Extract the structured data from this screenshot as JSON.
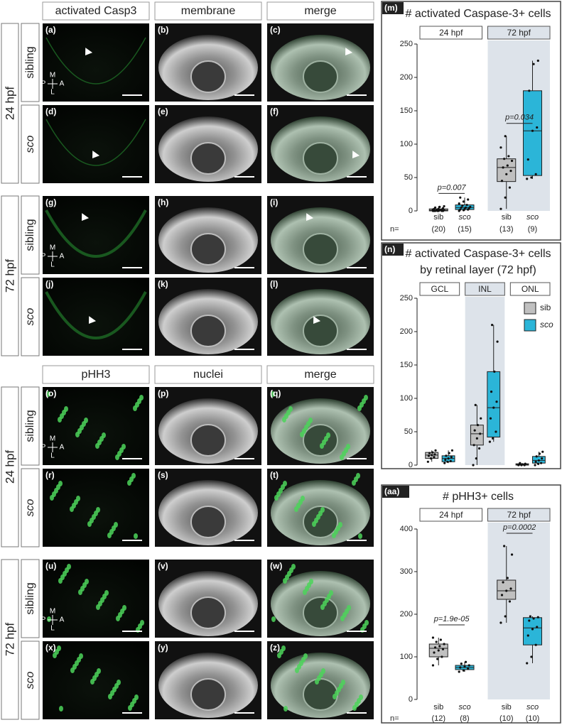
{
  "figure": {
    "compass": {
      "top": "M",
      "left": "P",
      "right": "A",
      "bottom": "L"
    },
    "sections": [
      {
        "headers": [
          "activated Casp3",
          "membrane",
          "merge"
        ],
        "stages": [
          {
            "name": "24 hpf",
            "rows": [
              {
                "label": "sibling",
                "panels": [
                  "(a)",
                  "(b)",
                  "(c)"
                ]
              },
              {
                "label": "sco",
                "panels": [
                  "(d)",
                  "(e)",
                  "(f)"
                ]
              }
            ]
          },
          {
            "name": "72 hpf",
            "rows": [
              {
                "label": "sibling",
                "panels": [
                  "(g)",
                  "(h)",
                  "(i)"
                ]
              },
              {
                "label": "sco",
                "panels": [
                  "(j)",
                  "(k)",
                  "(l)"
                ]
              }
            ]
          }
        ]
      },
      {
        "headers": [
          "pHH3",
          "nuclei",
          "merge"
        ],
        "stages": [
          {
            "name": "24 hpf",
            "rows": [
              {
                "label": "sibling",
                "panels": [
                  "(o)",
                  "(p)",
                  "(q)"
                ]
              },
              {
                "label": "sco",
                "panels": [
                  "(r)",
                  "(s)",
                  "(t)"
                ]
              }
            ]
          },
          {
            "name": "72 hpf",
            "rows": [
              {
                "label": "sibling",
                "panels": [
                  "(u)",
                  "(v)",
                  "(w)"
                ]
              },
              {
                "label": "sco",
                "panels": [
                  "(x)",
                  "(y)",
                  "(z)"
                ]
              }
            ]
          }
        ]
      }
    ]
  },
  "chart_data": [
    {
      "type": "box",
      "panel": "(m)",
      "title": "# activated Caspase-3+ cells",
      "ylim": [
        0,
        250
      ],
      "yticks": [
        0,
        50,
        100,
        150,
        200,
        250
      ],
      "colors": [
        "#c0c0c0",
        "#2bb5d8"
      ],
      "n_label": "n=",
      "groups": [
        {
          "name": "24 hpf",
          "shaded": false,
          "categories": [
            "sib",
            "sco"
          ],
          "n": [
            "(20)",
            "(15)"
          ],
          "p_value": "p=0.007",
          "boxes": [
            {
              "min": 0,
              "q1": 0,
              "median": 1,
              "q3": 3,
              "max": 7,
              "points": [
                0,
                0,
                0,
                0,
                0,
                0,
                0,
                1,
                1,
                1,
                1,
                2,
                2,
                2,
                3,
                3,
                4,
                5,
                6,
                7
              ]
            },
            {
              "min": 0,
              "q1": 2,
              "median": 5,
              "q3": 9,
              "max": 20,
              "points": [
                0,
                1,
                2,
                2,
                3,
                4,
                5,
                5,
                6,
                8,
                9,
                11,
                14,
                17,
                20
              ]
            }
          ]
        },
        {
          "name": "72 hpf",
          "shaded": true,
          "categories": [
            "sib",
            "sco"
          ],
          "n": [
            "(13)",
            "(9)"
          ],
          "p_value": "p=0.034",
          "boxes": [
            {
              "min": 3,
              "q1": 44,
              "median": 65,
              "q3": 78,
              "max": 112,
              "points": [
                3,
                20,
                35,
                45,
                55,
                60,
                65,
                68,
                75,
                78,
                82,
                95,
                112
              ]
            },
            {
              "min": 48,
              "q1": 53,
              "median": 120,
              "q3": 180,
              "max": 225,
              "points": [
                48,
                50,
                55,
                77,
                120,
                125,
                180,
                220,
                225
              ]
            }
          ]
        }
      ]
    },
    {
      "type": "box",
      "panel": "(n)",
      "title": "# activated Caspase-3+ cells",
      "subtitle": "by retinal layer (72 hpf)",
      "ylim": [
        0,
        250
      ],
      "yticks": [
        0,
        50,
        100,
        150,
        200,
        250
      ],
      "series": [
        {
          "name": "sib",
          "color": "#c0c0c0"
        },
        {
          "name": "sco",
          "color": "#2bb5d8"
        }
      ],
      "legend": "top-right",
      "groups": [
        {
          "name": "GCL",
          "shaded": false,
          "boxes": [
            {
              "min": 5,
              "q1": 10,
              "median": 15,
              "q3": 19,
              "max": 22,
              "points": [
                5,
                10,
                12,
                14,
                15,
                16,
                18,
                19,
                22
              ]
            },
            {
              "min": 3,
              "q1": 5,
              "median": 10,
              "q3": 14,
              "max": 22,
              "points": [
                3,
                5,
                6,
                8,
                10,
                12,
                14,
                18,
                22
              ]
            }
          ]
        },
        {
          "name": "INL",
          "shaded": true,
          "boxes": [
            {
              "min": 0,
              "q1": 30,
              "median": 47,
              "q3": 60,
              "max": 90,
              "points": [
                0,
                10,
                25,
                30,
                40,
                47,
                52,
                60,
                70,
                90
              ]
            },
            {
              "min": 35,
              "q1": 42,
              "median": 86,
              "q3": 140,
              "max": 210,
              "points": [
                35,
                40,
                50,
                70,
                86,
                95,
                110,
                140,
                185,
                210
              ]
            }
          ]
        },
        {
          "name": "ONL",
          "shaded": false,
          "boxes": [
            {
              "min": 0,
              "q1": 0,
              "median": 1,
              "q3": 2,
              "max": 3,
              "points": [
                0,
                0,
                0,
                1,
                1,
                2,
                3
              ]
            },
            {
              "min": 0,
              "q1": 3,
              "median": 7,
              "q3": 13,
              "max": 20,
              "points": [
                0,
                2,
                3,
                5,
                7,
                10,
                13,
                17,
                20
              ]
            }
          ]
        }
      ]
    },
    {
      "type": "box",
      "panel": "(aa)",
      "title": "# pHH3+ cells",
      "ylim": [
        0,
        400
      ],
      "yticks": [
        0,
        100,
        200,
        300,
        400
      ],
      "colors": [
        "#c0c0c0",
        "#2bb5d8"
      ],
      "n_label": "n=",
      "groups": [
        {
          "name": "24 hpf",
          "shaded": false,
          "categories": [
            "sib",
            "sco"
          ],
          "n": [
            "(12)",
            "(8)"
          ],
          "p_value": "p=1.9e-05",
          "boxes": [
            {
              "min": 80,
              "q1": 100,
              "median": 120,
              "q3": 130,
              "max": 145,
              "points": [
                80,
                95,
                100,
                110,
                115,
                118,
                122,
                125,
                130,
                135,
                140,
                145
              ]
            },
            {
              "min": 65,
              "q1": 70,
              "median": 75,
              "q3": 80,
              "max": 88,
              "points": [
                65,
                68,
                72,
                75,
                77,
                80,
                84,
                88
              ]
            }
          ]
        },
        {
          "name": "72 hpf",
          "shaded": true,
          "categories": [
            "sib",
            "sco"
          ],
          "n": [
            "(10)",
            "(10)"
          ],
          "p_value": "p=0.0002",
          "boxes": [
            {
              "min": 180,
              "q1": 235,
              "median": 255,
              "q3": 280,
              "max": 360,
              "points": [
                180,
                195,
                230,
                245,
                255,
                260,
                275,
                285,
                340,
                360
              ]
            },
            {
              "min": 85,
              "q1": 128,
              "median": 168,
              "q3": 192,
              "max": 195,
              "points": [
                85,
                100,
                128,
                150,
                165,
                170,
                185,
                190,
                193,
                195
              ]
            }
          ]
        }
      ]
    }
  ]
}
